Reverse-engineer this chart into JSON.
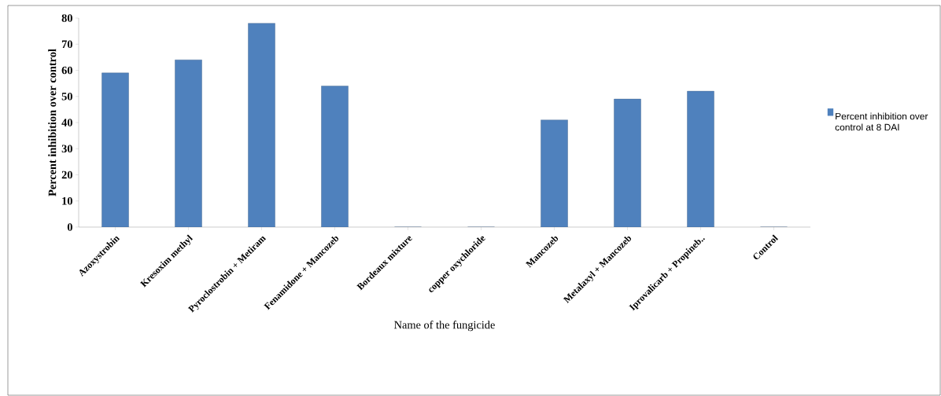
{
  "chart_data": {
    "type": "bar",
    "xlabel": "Name of the fungicide",
    "ylabel": "Percent inhibition over control",
    "categories": [
      "Azoxystrobin",
      "Kresoxim methyl",
      "Pyroclostrobin + Metiram",
      "Fenamidone + Mancozeb",
      "Bordeaux mixture",
      "copper oxychloride",
      "Mancozeb",
      "Metalaxyl + Mancozeb",
      "Iprovalicarb + Propineb..",
      "Control"
    ],
    "series": [
      {
        "name": "Percent inhibition over control at 8 DAI",
        "color": "#4f81bd",
        "values": [
          59,
          64,
          78,
          54,
          0,
          0,
          41,
          49,
          52,
          0
        ]
      }
    ],
    "ylim": [
      0,
      80
    ],
    "yticks": [
      0,
      10,
      20,
      30,
      40,
      50,
      60,
      70,
      80
    ],
    "legend": "right",
    "grid": false
  }
}
